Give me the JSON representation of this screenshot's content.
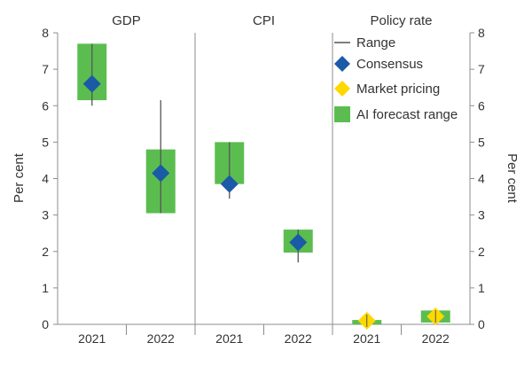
{
  "chart_data": {
    "type": "box",
    "panels": [
      "GDP",
      "CPI",
      "Policy rate"
    ],
    "categories": [
      "2021",
      "2022"
    ],
    "ylabel_left": "Per cent",
    "ylabel_right": "Per cent",
    "ylim": [
      0,
      8
    ],
    "yticks": [
      "0",
      "1",
      "2",
      "3",
      "4",
      "5",
      "6",
      "7",
      "8"
    ],
    "series": [
      {
        "panel": "GDP",
        "year": "2021",
        "range_low": 6.0,
        "range_high": 7.7,
        "ai_low": 6.15,
        "ai_high": 7.7,
        "consensus": 6.6,
        "market": null
      },
      {
        "panel": "GDP",
        "year": "2022",
        "range_low": 3.05,
        "range_high": 6.15,
        "ai_low": 3.05,
        "ai_high": 4.8,
        "consensus": 4.15,
        "market": null
      },
      {
        "panel": "CPI",
        "year": "2021",
        "range_low": 3.45,
        "range_high": 5.0,
        "ai_low": 3.85,
        "ai_high": 5.0,
        "consensus": 3.85,
        "market": null
      },
      {
        "panel": "CPI",
        "year": "2022",
        "range_low": 1.7,
        "range_high": 2.6,
        "ai_low": 1.97,
        "ai_high": 2.6,
        "consensus": 2.25,
        "market": null
      },
      {
        "panel": "Policy rate",
        "year": "2021",
        "range_low": 0.0,
        "range_high": 0.2,
        "ai_low": 0.0,
        "ai_high": 0.12,
        "consensus": null,
        "market": 0.1
      },
      {
        "panel": "Policy rate",
        "year": "2022",
        "range_low": 0.05,
        "range_high": 0.35,
        "ai_low": 0.05,
        "ai_high": 0.38,
        "consensus": null,
        "market": 0.22
      }
    ],
    "legend": [
      {
        "key": "range",
        "label": "Range"
      },
      {
        "key": "consensus",
        "label": "Consensus"
      },
      {
        "key": "market",
        "label": "Market pricing"
      },
      {
        "key": "ai",
        "label": "AI forecast range"
      }
    ],
    "colors": {
      "range": "#555555",
      "consensus": "#1a5aa6",
      "market": "#ffd800",
      "ai": "#5bbd4f",
      "axis": "#8c8c8c"
    }
  }
}
